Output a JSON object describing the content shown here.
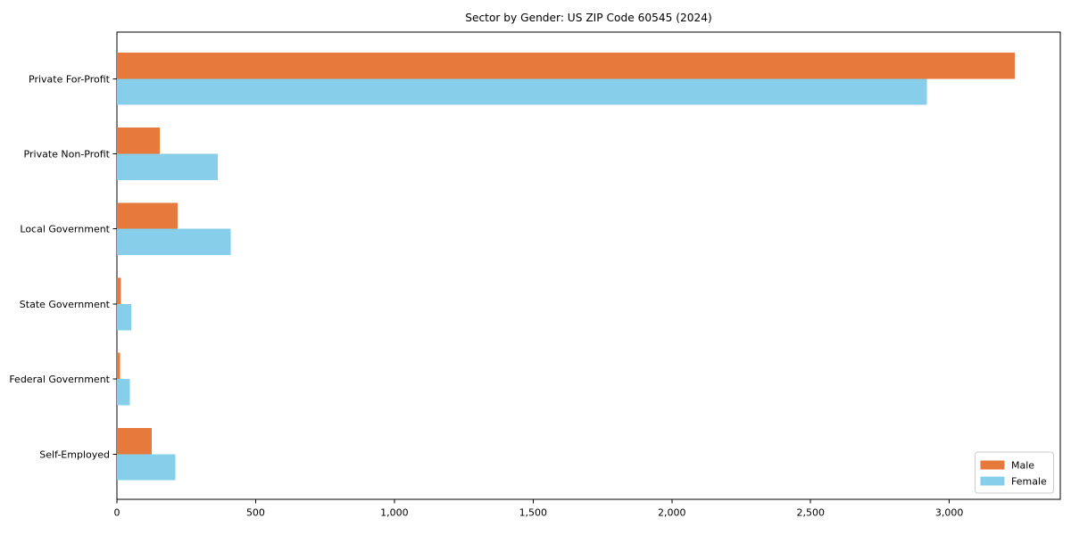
{
  "chart_data": {
    "type": "bar",
    "orientation": "horizontal",
    "title": "Sector by Gender: US ZIP Code 60545 (2024)",
    "categories": [
      "Private For-Profit",
      "Private Non-Profit",
      "Local Government",
      "State Government",
      "Federal Government",
      "Self-Employed"
    ],
    "series": [
      {
        "name": "Male",
        "color": "#e8793d",
        "values": [
          3236,
          154,
          219,
          14,
          12,
          126
        ]
      },
      {
        "name": "Female",
        "color": "#87ceeb",
        "values": [
          2919,
          364,
          410,
          51,
          47,
          210
        ]
      }
    ],
    "xlabel": "",
    "ylabel": "",
    "xlim": [
      0,
      3400
    ],
    "xticks": [
      0,
      500,
      1000,
      1500,
      2000,
      2500,
      3000
    ],
    "xtick_labels": [
      "0",
      "500",
      "1,000",
      "1,500",
      "2,000",
      "2,500",
      "3,000"
    ],
    "grid": false,
    "legend": {
      "position": "lower right",
      "entries": [
        "Male",
        "Female"
      ]
    },
    "colors": {
      "spine": "#000000",
      "background": "#ffffff",
      "legend_border": "#cccccc"
    }
  }
}
